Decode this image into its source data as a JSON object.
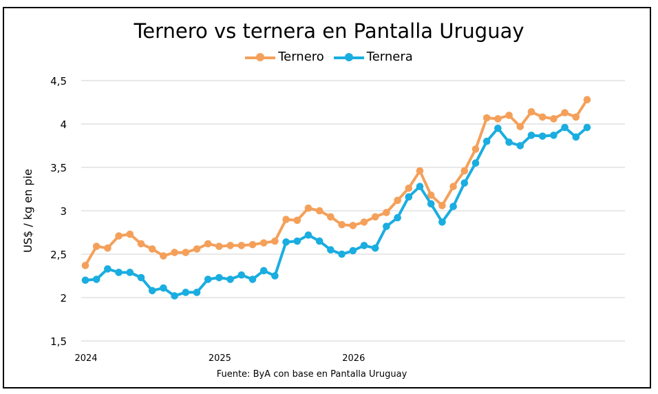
{
  "chart_data": {
    "type": "line",
    "title": "Ternero vs ternera en Pantalla Uruguay",
    "ylabel": "US$ / kg en pie",
    "xlabel": "",
    "source": "Fuente: ByA con base en Pantalla Uruguay",
    "ylim": [
      1.5,
      4.5
    ],
    "yticks": [
      "1,5",
      "2",
      "2,5",
      "3",
      "3,5",
      "4",
      "4,5"
    ],
    "ytick_values": [
      1.5,
      2,
      2.5,
      3,
      3.5,
      4,
      4.5
    ],
    "xticks": [
      "2024",
      "2025",
      "2026"
    ],
    "grid": true,
    "legend_position": "top-center",
    "series": [
      {
        "name": "Ternero",
        "color": "#F4A05A",
        "values": [
          2.37,
          2.59,
          2.57,
          2.71,
          2.73,
          2.62,
          2.56,
          2.48,
          2.52,
          2.52,
          2.56,
          2.62,
          2.59,
          2.6,
          2.6,
          2.61,
          2.63,
          2.65,
          2.9,
          2.89,
          3.03,
          3.0,
          2.93,
          2.84,
          2.83,
          2.87,
          2.93,
          2.98,
          3.12,
          3.26,
          3.46,
          3.18,
          3.06,
          3.28,
          3.46,
          3.71,
          4.07,
          4.06,
          4.1,
          3.97,
          4.14,
          4.08,
          4.06,
          4.13,
          4.08,
          4.28
        ]
      },
      {
        "name": "Ternera",
        "color": "#1AADE0",
        "values": [
          2.2,
          2.21,
          2.33,
          2.29,
          2.29,
          2.23,
          2.08,
          2.11,
          2.02,
          2.06,
          2.06,
          2.21,
          2.23,
          2.21,
          2.26,
          2.21,
          2.31,
          2.25,
          2.64,
          2.65,
          2.72,
          2.65,
          2.55,
          2.5,
          2.54,
          2.6,
          2.57,
          2.82,
          2.92,
          3.16,
          3.28,
          3.08,
          2.87,
          3.05,
          3.32,
          3.55,
          3.8,
          3.95,
          3.79,
          3.75,
          3.87,
          3.86,
          3.87,
          3.96,
          3.85,
          3.96
        ]
      }
    ]
  }
}
